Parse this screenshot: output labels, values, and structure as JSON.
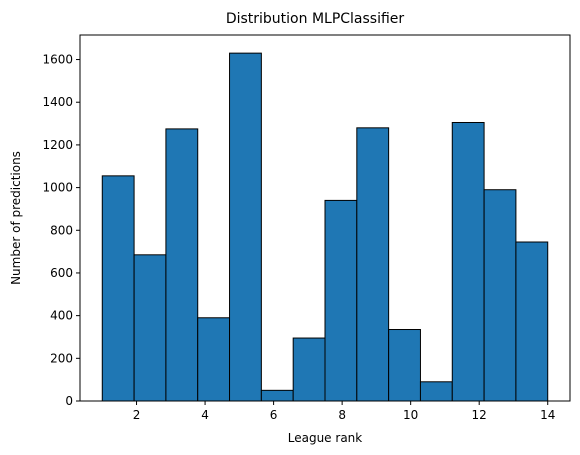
{
  "chart_data": {
    "type": "bar",
    "title": "Distribution MLPClassifier",
    "xlabel": "League rank",
    "ylabel": "Number of predictions",
    "bin_edges": [
      1.0,
      1.928571,
      2.857143,
      3.785714,
      4.714286,
      5.642857,
      6.571429,
      7.5,
      8.428571,
      9.357143,
      10.285714,
      11.214286,
      12.142857,
      13.071429,
      14.0
    ],
    "values": [
      1055,
      685,
      1275,
      390,
      1630,
      50,
      295,
      940,
      1280,
      335,
      90,
      1305,
      990,
      745
    ],
    "xlim": [
      0.35,
      14.65
    ],
    "ylim": [
      0,
      1715
    ],
    "xticks": [
      2,
      4,
      6,
      8,
      10,
      12,
      14
    ],
    "yticks": [
      0,
      200,
      400,
      600,
      800,
      1000,
      1200,
      1400,
      1600
    ],
    "bar_color": "#1f77b4",
    "edge_color": "#000000",
    "grid": false
  }
}
